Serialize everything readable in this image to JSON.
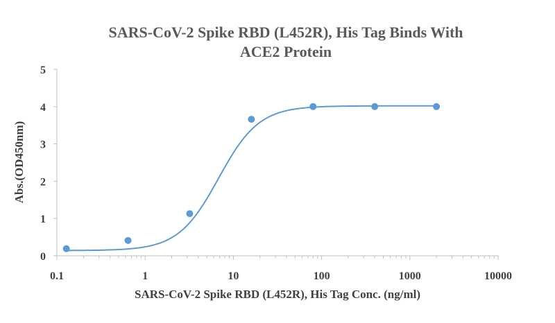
{
  "chart_data": {
    "type": "scatter",
    "title_lines": [
      "SARS-CoV-2 Spike RBD (L452R), His Tag Binds With",
      "ACE2 Protein"
    ],
    "xlabel": "SARS-CoV-2 Spike RBD (L452R), His Tag Conc. (ng/ml)",
    "ylabel": "Abs.(OD450nm)",
    "x_scale": "log",
    "xlim": [
      0.1,
      10000
    ],
    "ylim": [
      0,
      5
    ],
    "x_ticks": [
      0.1,
      1,
      10,
      100,
      1000,
      10000
    ],
    "x_tick_labels": [
      "0.1",
      "1",
      "10",
      "100",
      "1000",
      "10000"
    ],
    "y_ticks": [
      0,
      1,
      2,
      3,
      4,
      5
    ],
    "y_tick_labels": [
      "0",
      "1",
      "2",
      "3",
      "4",
      "5"
    ],
    "grid": false,
    "legend": "none",
    "series": [
      {
        "color": "#5b9bd5",
        "x": [
          0.128,
          0.64,
          3.2,
          16,
          80,
          400,
          2000
        ],
        "y": [
          0.19,
          0.41,
          1.13,
          3.66,
          4.0,
          4.0,
          4.0
        ],
        "fit": "4PL sigmoid"
      }
    ]
  }
}
